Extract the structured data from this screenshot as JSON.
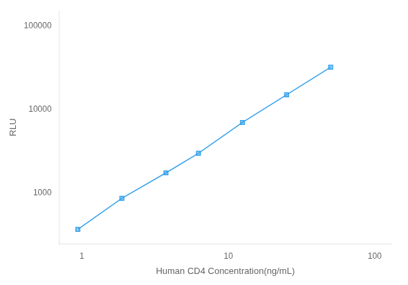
{
  "chart_data": {
    "type": "line",
    "xlabel": "Human CD4 Concentration(ng/mL)",
    "ylabel": "RLU",
    "x": [
      0.938,
      1.875,
      3.75,
      6.25,
      12.5,
      25.0,
      50.0
    ],
    "values": [
      370,
      870,
      1750,
      3000,
      7000,
      15000,
      32000
    ],
    "xlim": [
      0.7,
      130
    ],
    "ylim": [
      250,
      150000
    ],
    "xticks": [
      1,
      10,
      100
    ],
    "yticks": [
      1000,
      10000,
      100000
    ],
    "log": true,
    "grid": false,
    "marker": "square"
  }
}
